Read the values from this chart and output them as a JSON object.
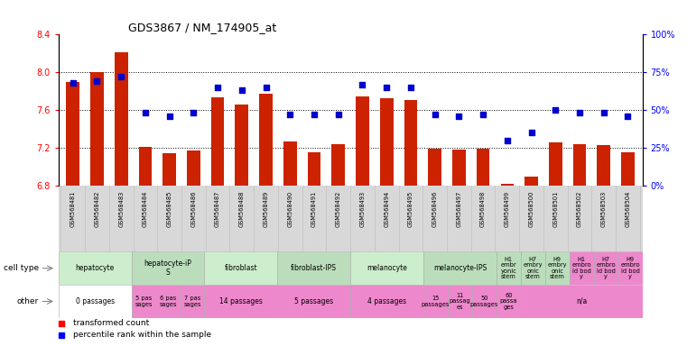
{
  "title": "GDS3867 / NM_174905_at",
  "samples": [
    "GSM568481",
    "GSM568482",
    "GSM568483",
    "GSM568484",
    "GSM568485",
    "GSM568486",
    "GSM568487",
    "GSM568488",
    "GSM568489",
    "GSM568490",
    "GSM568491",
    "GSM568492",
    "GSM568493",
    "GSM568494",
    "GSM568495",
    "GSM568496",
    "GSM568497",
    "GSM568498",
    "GSM568499",
    "GSM568500",
    "GSM568501",
    "GSM568502",
    "GSM568503",
    "GSM568504"
  ],
  "bar_values": [
    7.9,
    8.0,
    8.21,
    7.21,
    7.14,
    7.17,
    7.73,
    7.66,
    7.77,
    7.27,
    7.15,
    7.24,
    7.74,
    7.72,
    7.71,
    7.19,
    7.18,
    7.19,
    6.82,
    6.89,
    7.26,
    7.24,
    7.23,
    7.15
  ],
  "percentile_values": [
    68,
    69,
    72,
    48,
    46,
    48,
    65,
    63,
    65,
    47,
    47,
    47,
    67,
    65,
    65,
    47,
    46,
    47,
    30,
    35,
    50,
    48,
    48,
    46
  ],
  "bar_color": "#cc2200",
  "dot_color": "#0000cc",
  "ylim_left": [
    6.8,
    8.4
  ],
  "ylim_right": [
    0,
    100
  ],
  "yticks_left": [
    6.8,
    7.2,
    7.6,
    8.0,
    8.4
  ],
  "yticks_right": [
    0,
    25,
    50,
    75,
    100
  ],
  "ytick_labels_right": [
    "0%",
    "25%",
    "50%",
    "75%",
    "100%"
  ],
  "grid_values": [
    8.0,
    7.6,
    7.2
  ],
  "n_samples": 24,
  "cell_type_groups": [
    {
      "label": "hepatocyte",
      "start": 0,
      "end": 3,
      "color": "#cceecc"
    },
    {
      "label": "hepatocyte-iP\nS",
      "start": 3,
      "end": 6,
      "color": "#bbddbb"
    },
    {
      "label": "fibroblast",
      "start": 6,
      "end": 9,
      "color": "#cceecc"
    },
    {
      "label": "fibroblast-IPS",
      "start": 9,
      "end": 12,
      "color": "#bbddbb"
    },
    {
      "label": "melanocyte",
      "start": 12,
      "end": 15,
      "color": "#cceecc"
    },
    {
      "label": "melanocyte-IPS",
      "start": 15,
      "end": 18,
      "color": "#bbddbb"
    },
    {
      "label": "H1\nembr\nyonic\nstem",
      "start": 18,
      "end": 19,
      "color": "#bbddbb"
    },
    {
      "label": "H7\nembry\nonic\nstem",
      "start": 19,
      "end": 20,
      "color": "#bbddbb"
    },
    {
      "label": "H9\nembry\nonic\nstem",
      "start": 20,
      "end": 21,
      "color": "#bbddbb"
    },
    {
      "label": "H1\nembro\nid bod\ny",
      "start": 21,
      "end": 22,
      "color": "#ee88cc"
    },
    {
      "label": "H7\nembro\nid bod\ny",
      "start": 22,
      "end": 23,
      "color": "#ee88cc"
    },
    {
      "label": "H9\nembro\nid bod\ny",
      "start": 23,
      "end": 24,
      "color": "#ee88cc"
    }
  ],
  "other_groups": [
    {
      "label": "0 passages",
      "start": 0,
      "end": 3,
      "color": "#ffffff"
    },
    {
      "label": "5 pas\nsages",
      "start": 3,
      "end": 4,
      "color": "#ee88cc"
    },
    {
      "label": "6 pas\nsages",
      "start": 4,
      "end": 5,
      "color": "#ee88cc"
    },
    {
      "label": "7 pas\nsages",
      "start": 5,
      "end": 6,
      "color": "#ee88cc"
    },
    {
      "label": "14 passages",
      "start": 6,
      "end": 9,
      "color": "#ee88cc"
    },
    {
      "label": "5 passages",
      "start": 9,
      "end": 12,
      "color": "#ee88cc"
    },
    {
      "label": "4 passages",
      "start": 12,
      "end": 15,
      "color": "#ee88cc"
    },
    {
      "label": "15\npassages",
      "start": 15,
      "end": 16,
      "color": "#ee88cc"
    },
    {
      "label": "11\npassag\nes",
      "start": 16,
      "end": 17,
      "color": "#ee88cc"
    },
    {
      "label": "50\npassages",
      "start": 17,
      "end": 18,
      "color": "#ee88cc"
    },
    {
      "label": "60\npassa\nges",
      "start": 18,
      "end": 19,
      "color": "#ee88cc"
    },
    {
      "label": "n/a",
      "start": 19,
      "end": 24,
      "color": "#ee88cc"
    }
  ],
  "tick_bg_color": "#d8d8d8",
  "left_label_color": "#888888",
  "figure_width": 7.61,
  "figure_height": 3.84,
  "dpi": 100
}
